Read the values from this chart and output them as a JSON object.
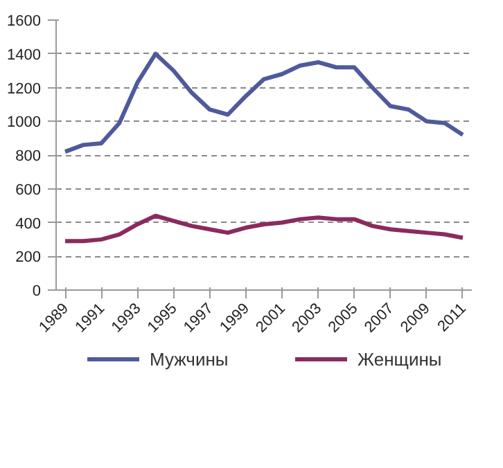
{
  "chart_data": {
    "type": "line",
    "categories": [
      "1989",
      null,
      "1991",
      null,
      "1993",
      null,
      "1995",
      null,
      "1997",
      null,
      "1999",
      null,
      "2001",
      null,
      "2003",
      null,
      "2005",
      null,
      "2007",
      null,
      "2009",
      null,
      "2011"
    ],
    "series": [
      {
        "name": "Мужчины",
        "color": "#4f5a9c",
        "values": [
          820,
          860,
          870,
          990,
          1230,
          1400,
          1300,
          1170,
          1070,
          1040,
          1150,
          1250,
          1280,
          1330,
          1350,
          1320,
          1320,
          1200,
          1090,
          1070,
          1000,
          990,
          920
        ]
      },
      {
        "name": "Женщины",
        "color": "#8b2a5e",
        "values": [
          290,
          290,
          300,
          330,
          390,
          440,
          410,
          380,
          360,
          340,
          370,
          390,
          400,
          420,
          430,
          420,
          420,
          380,
          360,
          350,
          340,
          330,
          310
        ]
      }
    ],
    "ylim": [
      0,
      1600
    ],
    "yticks": [
      0,
      200,
      400,
      600,
      800,
      1000,
      1200,
      1400,
      1600
    ],
    "grid": "y",
    "legend": "bottom",
    "line_style": "solid"
  }
}
